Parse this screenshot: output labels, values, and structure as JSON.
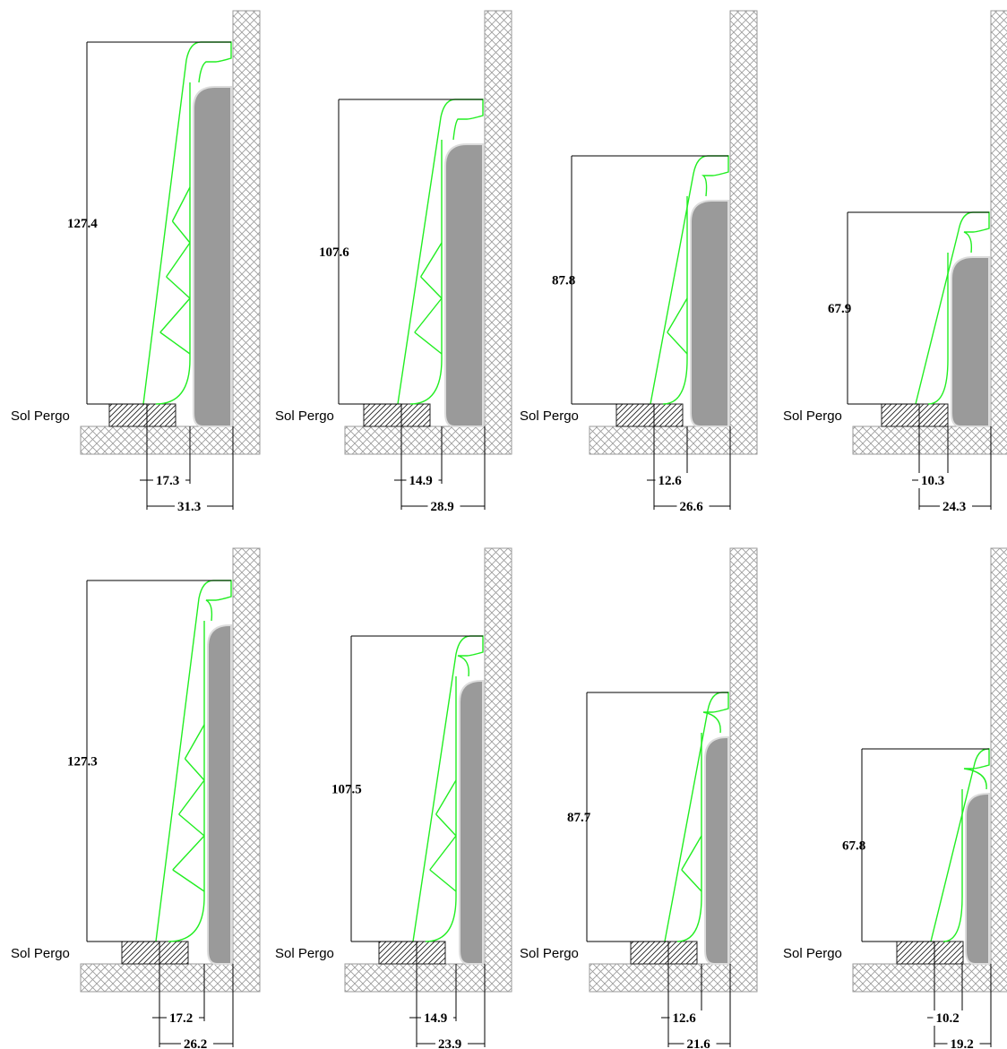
{
  "floor_label": "Sol Pergo",
  "profiles": [
    {
      "height": "127.4",
      "inner": "17.3",
      "outer": "31.3",
      "zigzags": 3
    },
    {
      "height": "107.6",
      "inner": "14.9",
      "outer": "28.9",
      "zigzags": 2
    },
    {
      "height": "87.8",
      "inner": "12.6",
      "outer": "26.6",
      "zigzags": 1
    },
    {
      "height": "67.9",
      "inner": "10.3",
      "outer": "24.3",
      "zigzags": 0
    },
    {
      "height": "127.3",
      "inner": "17.2",
      "outer": "26.2",
      "zigzags": 3
    },
    {
      "height": "107.5",
      "inner": "14.9",
      "outer": "23.9",
      "zigzags": 2
    },
    {
      "height": "87.7",
      "inner": "12.6",
      "outer": "21.6",
      "zigzags": 1
    },
    {
      "height": "67.8",
      "inner": "10.2",
      "outer": "19.2",
      "zigzags": 0
    }
  ],
  "colors": {
    "profile": "#22ee22",
    "panel": "#9a9a9a",
    "hatch": "#9a9a9a"
  }
}
